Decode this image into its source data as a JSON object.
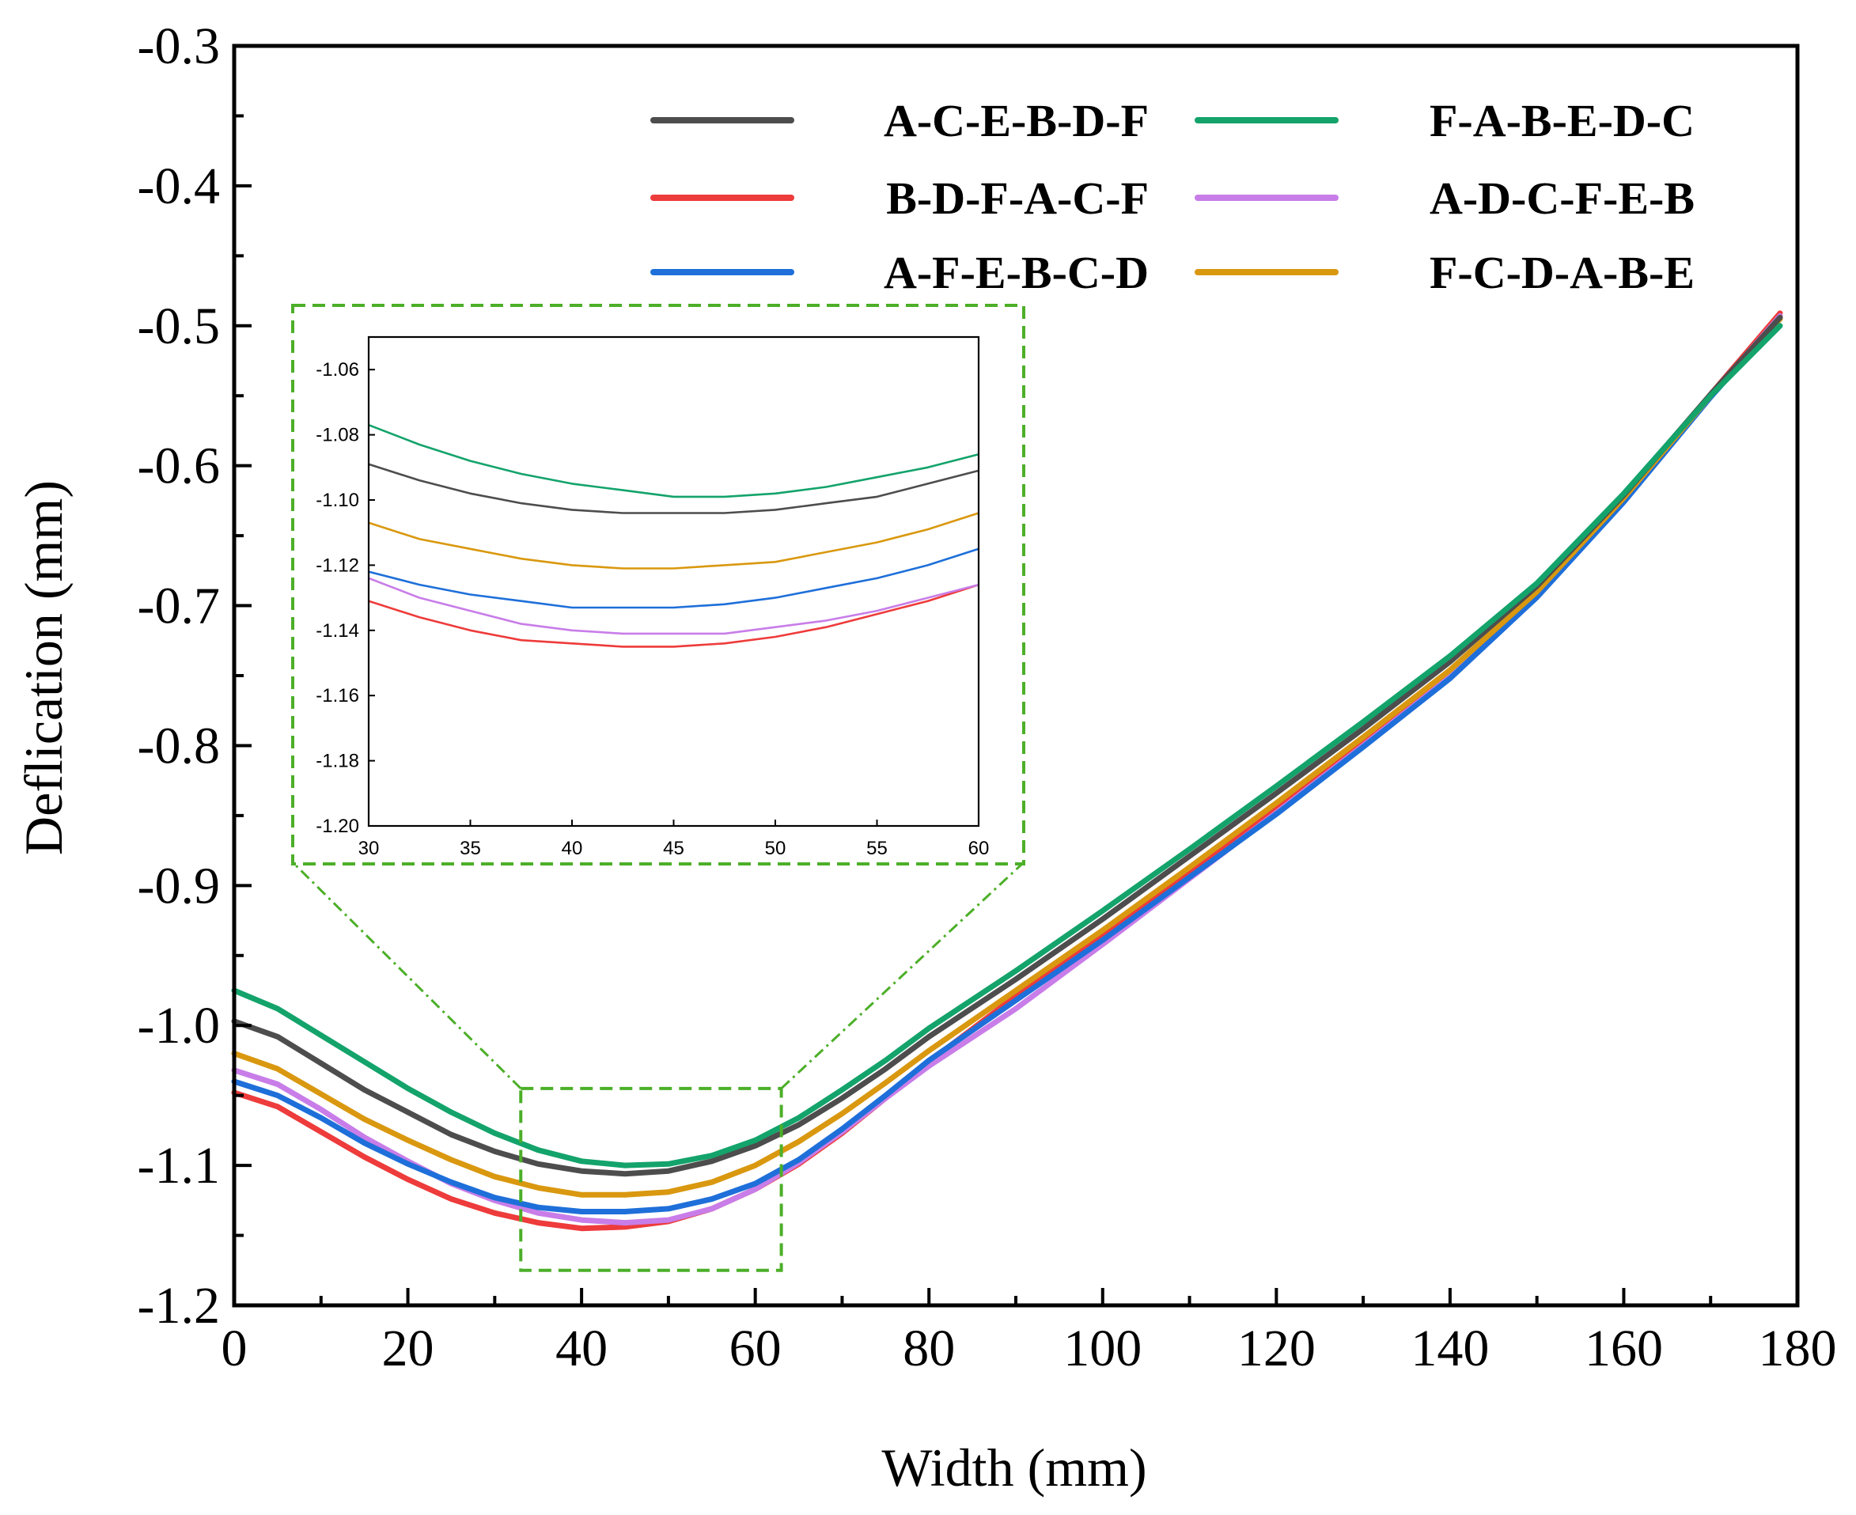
{
  "chart_data": [
    {
      "type": "line",
      "role": "main",
      "title": "",
      "xlabel": "Width (mm)",
      "ylabel": "Deflication (mm)",
      "xlim": [
        0,
        180
      ],
      "ylim": [
        -1.2,
        -0.3
      ],
      "xticks": [
        0,
        20,
        40,
        60,
        80,
        100,
        120,
        140,
        160,
        180
      ],
      "xtick_labels": [
        "0",
        "20",
        "40",
        "60",
        "80",
        "100",
        "120",
        "140",
        "160",
        "180"
      ],
      "yticks": [
        -1.2,
        -1.1,
        -1.0,
        -0.9,
        -0.8,
        -0.7,
        -0.6,
        -0.5,
        -0.4,
        -0.3
      ],
      "ytick_labels": [
        "-1.2",
        "-1.1",
        "-1.0",
        "-0.9",
        "-0.8",
        "-0.7",
        "-0.6",
        "-0.5",
        "-0.4",
        "-0.3"
      ],
      "grid": false,
      "legend_position": "top-right",
      "zoom_box": {
        "x": [
          33,
          63
        ],
        "y": [
          -1.175,
          -1.045
        ]
      },
      "x": [
        0,
        5,
        10,
        15,
        20,
        25,
        30,
        35,
        40,
        45,
        50,
        55,
        60,
        65,
        70,
        75,
        80,
        90,
        100,
        110,
        120,
        130,
        140,
        150,
        160,
        170,
        178
      ],
      "series": [
        {
          "name": "A-C-E-B-D-F",
          "color": "#4d4d4d",
          "values": [
            -0.997,
            -1.008,
            -1.027,
            -1.046,
            -1.062,
            -1.078,
            -1.09,
            -1.099,
            -1.104,
            -1.106,
            -1.104,
            -1.097,
            -1.086,
            -1.071,
            -1.052,
            -1.031,
            -1.008,
            -0.967,
            -0.924,
            -0.879,
            -0.834,
            -0.788,
            -0.74,
            -0.686,
            -0.621,
            -0.549,
            -0.494
          ]
        },
        {
          "name": "B-D-F-A-C-F",
          "color": "#ee3b3b",
          "values": [
            -1.048,
            -1.058,
            -1.076,
            -1.094,
            -1.11,
            -1.124,
            -1.134,
            -1.141,
            -1.145,
            -1.144,
            -1.14,
            -1.131,
            -1.117,
            -1.099,
            -1.077,
            -1.052,
            -1.026,
            -0.979,
            -0.936,
            -0.891,
            -0.845,
            -0.797,
            -0.748,
            -0.69,
            -0.623,
            -0.549,
            -0.491
          ]
        },
        {
          "name": "A-F-E-B-C-D",
          "color": "#1e6fd9",
          "values": [
            -1.04,
            -1.05,
            -1.066,
            -1.084,
            -1.099,
            -1.112,
            -1.123,
            -1.13,
            -1.133,
            -1.133,
            -1.131,
            -1.124,
            -1.113,
            -1.096,
            -1.074,
            -1.05,
            -1.025,
            -0.982,
            -0.939,
            -0.894,
            -0.849,
            -0.801,
            -0.752,
            -0.694,
            -0.626,
            -0.551,
            -0.495
          ]
        },
        {
          "name": "F-A-B-E-D-C",
          "color": "#13a36b",
          "values": [
            -0.975,
            -0.988,
            -1.007,
            -1.026,
            -1.045,
            -1.062,
            -1.077,
            -1.089,
            -1.097,
            -1.1,
            -1.099,
            -1.093,
            -1.082,
            -1.066,
            -1.046,
            -1.025,
            -1.002,
            -0.961,
            -0.918,
            -0.874,
            -0.829,
            -0.783,
            -0.736,
            -0.684,
            -0.62,
            -0.55,
            -0.5
          ]
        },
        {
          "name": "A-D-C-F-E-B",
          "color": "#c87de8",
          "values": [
            -1.032,
            -1.042,
            -1.06,
            -1.08,
            -1.097,
            -1.113,
            -1.125,
            -1.134,
            -1.139,
            -1.141,
            -1.139,
            -1.131,
            -1.117,
            -1.098,
            -1.076,
            -1.052,
            -1.029,
            -0.988,
            -0.942,
            -0.895,
            -0.848,
            -0.8,
            -0.751,
            -0.692,
            -0.624,
            -0.55,
            -0.493
          ]
        },
        {
          "name": "F-C-D-A-B-E",
          "color": "#d9980f",
          "values": [
            -1.02,
            -1.031,
            -1.049,
            -1.067,
            -1.082,
            -1.096,
            -1.108,
            -1.116,
            -1.121,
            -1.121,
            -1.119,
            -1.112,
            -1.1,
            -1.083,
            -1.063,
            -1.041,
            -1.018,
            -0.975,
            -0.932,
            -0.887,
            -0.841,
            -0.794,
            -0.746,
            -0.69,
            -0.623,
            -0.55,
            -0.495
          ]
        }
      ]
    },
    {
      "type": "line",
      "role": "inset",
      "xlim": [
        30,
        60
      ],
      "ylim": [
        -1.2,
        -1.05
      ],
      "xticks": [
        30,
        35,
        40,
        45,
        50,
        55,
        60
      ],
      "xtick_labels": [
        "30",
        "35",
        "40",
        "45",
        "50",
        "55",
        "60"
      ],
      "yticks": [
        -1.2,
        -1.18,
        -1.16,
        -1.14,
        -1.12,
        -1.1,
        -1.08,
        -1.06
      ],
      "ytick_labels": [
        "-1.20",
        "-1.18",
        "-1.16",
        "-1.14",
        "-1.12",
        "-1.10",
        "-1.08",
        "-1.06"
      ],
      "x": [
        30,
        32.5,
        35,
        37.5,
        40,
        42.5,
        45,
        47.5,
        50,
        52.5,
        55,
        57.5,
        60
      ],
      "series": [
        {
          "name": "A-C-E-B-D-F",
          "values": [
            -1.089,
            -1.094,
            -1.098,
            -1.101,
            -1.103,
            -1.104,
            -1.104,
            -1.104,
            -1.103,
            -1.101,
            -1.099,
            -1.095,
            -1.091
          ]
        },
        {
          "name": "B-D-F-A-C-F",
          "values": [
            -1.131,
            -1.136,
            -1.14,
            -1.143,
            -1.144,
            -1.145,
            -1.145,
            -1.144,
            -1.142,
            -1.139,
            -1.135,
            -1.131,
            -1.126
          ]
        },
        {
          "name": "A-F-E-B-C-D",
          "values": [
            -1.122,
            -1.126,
            -1.129,
            -1.131,
            -1.133,
            -1.133,
            -1.133,
            -1.132,
            -1.13,
            -1.127,
            -1.124,
            -1.12,
            -1.115
          ]
        },
        {
          "name": "F-A-B-E-D-C",
          "values": [
            -1.077,
            -1.083,
            -1.088,
            -1.092,
            -1.095,
            -1.097,
            -1.099,
            -1.099,
            -1.098,
            -1.096,
            -1.093,
            -1.09,
            -1.086
          ]
        },
        {
          "name": "A-D-C-F-E-B",
          "values": [
            -1.124,
            -1.13,
            -1.134,
            -1.138,
            -1.14,
            -1.141,
            -1.141,
            -1.141,
            -1.139,
            -1.137,
            -1.134,
            -1.13,
            -1.126
          ]
        },
        {
          "name": "F-C-D-A-B-E",
          "values": [
            -1.107,
            -1.112,
            -1.115,
            -1.118,
            -1.12,
            -1.121,
            -1.121,
            -1.12,
            -1.119,
            -1.116,
            -1.113,
            -1.109,
            -1.104
          ]
        }
      ]
    }
  ]
}
